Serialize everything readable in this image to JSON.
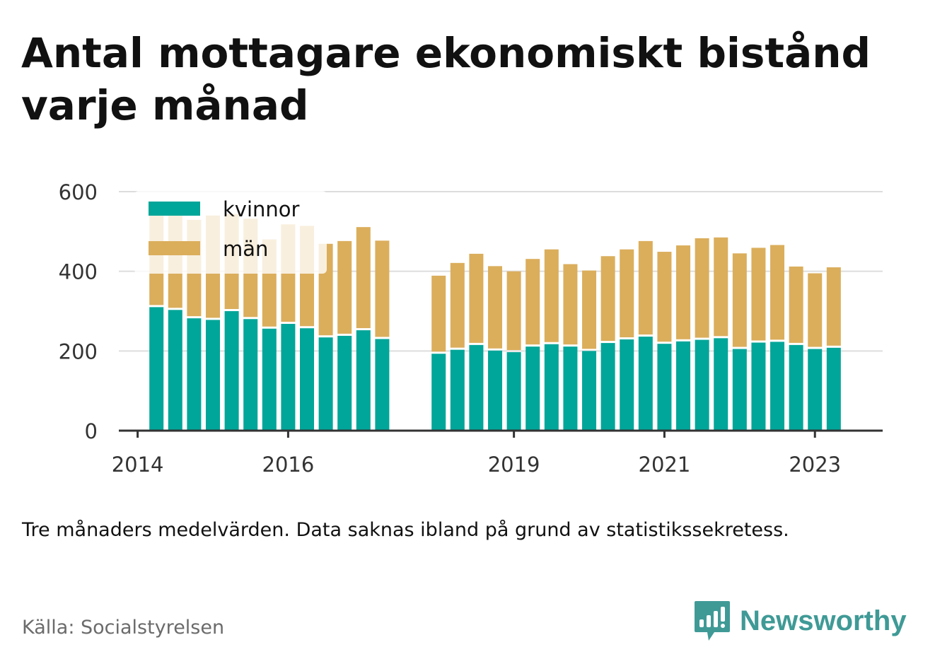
{
  "title": "Antal mottagare ekonomiskt bistånd varje månad",
  "note": "Tre månaders medelvärden. Data saknas ibland på grund av statistikssekretess.",
  "source": "Källa: Socialstyrelsen",
  "brand": "Newsworthy",
  "colors": {
    "kvinnor": "#00a699",
    "man": "#dbae5c",
    "grid": "#dddddd",
    "axis": "#333333",
    "brand": "#3f9a96"
  },
  "chart_data": {
    "type": "bar",
    "stacked": true,
    "ylim": [
      0,
      600
    ],
    "y_ticks": [
      0,
      200,
      400,
      600
    ],
    "x_ticks": [
      {
        "label": "2014",
        "date": "2014-01"
      },
      {
        "label": "2016",
        "date": "2016-01"
      },
      {
        "label": "2019",
        "date": "2019-01"
      },
      {
        "label": "2021",
        "date": "2021-01"
      },
      {
        "label": "2023",
        "date": "2023-01"
      }
    ],
    "legend_position": "top-left",
    "grid": true,
    "series": [
      {
        "name": "kvinnor",
        "color": "#00a699"
      },
      {
        "name": "män",
        "color": "#dbae5c"
      }
    ],
    "points": [
      {
        "date": "2014-04",
        "kvinnor": 310,
        "man": 235
      },
      {
        "date": "2014-07",
        "kvinnor": 303,
        "man": 255
      },
      {
        "date": "2014-10",
        "kvinnor": 282,
        "man": 247
      },
      {
        "date": "2015-01",
        "kvinnor": 278,
        "man": 262
      },
      {
        "date": "2015-04",
        "kvinnor": 300,
        "man": 244
      },
      {
        "date": "2015-07",
        "kvinnor": 280,
        "man": 252
      },
      {
        "date": "2015-10",
        "kvinnor": 256,
        "man": 224
      },
      {
        "date": "2016-01",
        "kvinnor": 268,
        "man": 250
      },
      {
        "date": "2016-04",
        "kvinnor": 257,
        "man": 257
      },
      {
        "date": "2016-07",
        "kvinnor": 234,
        "man": 235
      },
      {
        "date": "2016-10",
        "kvinnor": 238,
        "man": 238
      },
      {
        "date": "2017-01",
        "kvinnor": 252,
        "man": 259
      },
      {
        "date": "2017-04",
        "kvinnor": 230,
        "man": 247
      },
      {
        "date": "2018-01",
        "kvinnor": 193,
        "man": 196
      },
      {
        "date": "2018-04",
        "kvinnor": 203,
        "man": 218
      },
      {
        "date": "2018-07",
        "kvinnor": 215,
        "man": 229
      },
      {
        "date": "2018-10",
        "kvinnor": 201,
        "man": 212
      },
      {
        "date": "2019-01",
        "kvinnor": 197,
        "man": 203
      },
      {
        "date": "2019-04",
        "kvinnor": 211,
        "man": 220
      },
      {
        "date": "2019-07",
        "kvinnor": 217,
        "man": 238
      },
      {
        "date": "2019-10",
        "kvinnor": 211,
        "man": 207
      },
      {
        "date": "2020-01",
        "kvinnor": 200,
        "man": 202
      },
      {
        "date": "2020-04",
        "kvinnor": 220,
        "man": 218
      },
      {
        "date": "2020-07",
        "kvinnor": 229,
        "man": 226
      },
      {
        "date": "2020-10",
        "kvinnor": 236,
        "man": 240
      },
      {
        "date": "2021-01",
        "kvinnor": 218,
        "man": 231
      },
      {
        "date": "2021-04",
        "kvinnor": 224,
        "man": 241
      },
      {
        "date": "2021-07",
        "kvinnor": 228,
        "man": 255
      },
      {
        "date": "2021-10",
        "kvinnor": 232,
        "man": 253
      },
      {
        "date": "2022-01",
        "kvinnor": 205,
        "man": 240
      },
      {
        "date": "2022-04",
        "kvinnor": 221,
        "man": 238
      },
      {
        "date": "2022-07",
        "kvinnor": 223,
        "man": 243
      },
      {
        "date": "2022-10",
        "kvinnor": 215,
        "man": 197
      },
      {
        "date": "2023-01",
        "kvinnor": 205,
        "man": 190
      },
      {
        "date": "2023-04",
        "kvinnor": 208,
        "man": 202
      }
    ]
  }
}
